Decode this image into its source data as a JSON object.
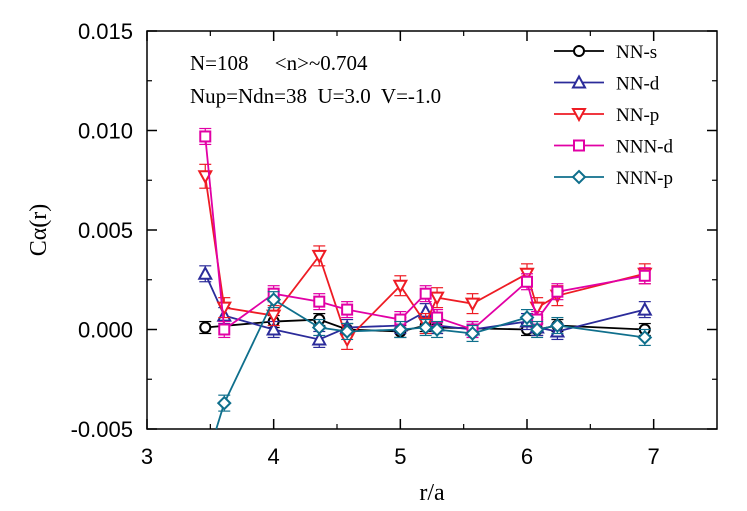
{
  "chart_data": {
    "type": "line",
    "title": "",
    "xlabel": "r/a",
    "ylabel": "Cα(r)",
    "xlim": [
      3,
      7.5
    ],
    "ylim": [
      -0.005,
      0.015
    ],
    "xticks": [
      3,
      4,
      5,
      6,
      7
    ],
    "xtick_labels": [
      "3",
      "4",
      "5",
      "6",
      "7"
    ],
    "yticks": [
      -0.005,
      0.0,
      0.005,
      0.01,
      0.015
    ],
    "ytick_labels": [
      "-0.005",
      "0.000",
      "0.005",
      "0.010",
      "0.015"
    ],
    "annotations": [
      "N=108     <n>~0.704",
      "Nup=Ndn=38  U=3.0  V=-1.0"
    ],
    "legend_position": "top-right",
    "series": [
      {
        "name": "NN-s",
        "color": "#000000",
        "marker": "circle",
        "x": [
          3.46,
          4.0,
          4.36,
          4.58,
          5.0,
          5.2,
          5.29,
          6.0,
          6.08,
          6.24,
          6.93
        ],
        "y": [
          0.0001,
          0.0004,
          0.0005,
          0.0,
          -0.0001,
          0.0002,
          0.0001,
          0.0,
          0.0,
          0.0002,
          0.0
        ],
        "err": [
          0.0003,
          0.0003,
          0.0003,
          0.0003,
          0.0003,
          0.0003,
          0.0003,
          0.0003,
          0.0003,
          0.0003,
          0.0003
        ]
      },
      {
        "name": "NN-d",
        "color": "#2b2b9a",
        "marker": "triangle-up",
        "x": [
          3.46,
          3.61,
          4.0,
          4.36,
          4.58,
          5.0,
          5.2,
          5.29,
          5.57,
          6.0,
          6.08,
          6.24,
          6.93
        ],
        "y": [
          0.0028,
          0.0007,
          0.0,
          -0.0005,
          0.0001,
          0.0002,
          0.0009,
          0.0002,
          0.0,
          0.0004,
          0.0001,
          -0.0001,
          0.001
        ],
        "err": [
          0.0004,
          0.0004,
          0.0004,
          0.0004,
          0.0004,
          0.0004,
          0.0004,
          0.0004,
          0.0004,
          0.0004,
          0.0004,
          0.0004,
          0.0004
        ]
      },
      {
        "name": "NN-p",
        "color": "#ee1c24",
        "marker": "triangle-down",
        "x": [
          3.46,
          3.61,
          4.0,
          4.36,
          4.58,
          5.0,
          5.2,
          5.29,
          5.57,
          6.0,
          6.08,
          6.24,
          6.93
        ],
        "y": [
          0.0077,
          0.0011,
          0.0007,
          0.0037,
          -0.0005,
          0.0022,
          0.0003,
          0.0016,
          0.0013,
          0.0028,
          0.0011,
          0.0017,
          0.0028
        ],
        "err": [
          0.0006,
          0.0005,
          0.0005,
          0.0005,
          0.0005,
          0.0005,
          0.0005,
          0.0005,
          0.0005,
          0.0005,
          0.0005,
          0.0005,
          0.0005
        ]
      },
      {
        "name": "NNN-d",
        "color": "#e100a5",
        "marker": "square",
        "x": [
          3.46,
          3.61,
          4.0,
          4.36,
          4.58,
          5.0,
          5.2,
          5.29,
          5.57,
          6.0,
          6.08,
          6.24,
          6.93
        ],
        "y": [
          0.0097,
          0.0,
          0.0018,
          0.0014,
          0.001,
          0.0005,
          0.0018,
          0.0006,
          0.0,
          0.0024,
          0.0005,
          0.0019,
          0.0027
        ],
        "err": [
          0.0004,
          0.0004,
          0.0004,
          0.0004,
          0.0004,
          0.0004,
          0.0004,
          0.0004,
          0.0004,
          0.0004,
          0.0004,
          0.0004,
          0.0004
        ]
      },
      {
        "name": "NNN-p",
        "color": "#0f6f8c",
        "marker": "diamond",
        "x": [
          3.61,
          4.0,
          4.36,
          4.58,
          5.0,
          5.2,
          5.29,
          5.57,
          6.0,
          6.08,
          6.24,
          6.93
        ],
        "y": [
          -0.0037,
          0.0015,
          0.0001,
          -0.0001,
          0.0,
          0.0001,
          0.0,
          -0.0002,
          0.0006,
          0.0,
          0.0002,
          -0.0004
        ],
        "err": [
          0.0004,
          0.0004,
          0.0004,
          0.0004,
          0.0004,
          0.0004,
          0.0004,
          0.0004,
          0.0004,
          0.0004,
          0.0004,
          0.0004
        ]
      }
    ]
  }
}
